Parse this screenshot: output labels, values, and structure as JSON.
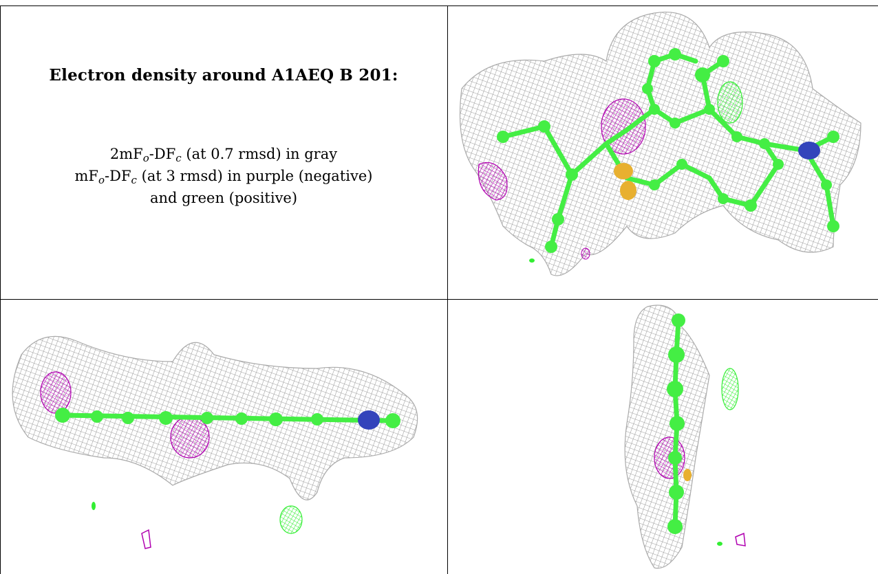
{
  "caption": {
    "title": "Electron density around A1AEQ B 201:",
    "line1": {
      "prefix": "2mF",
      "sub_o": "o",
      "mid": "-DF",
      "sub_c": "c",
      "suffix": " (at 0.7 rmsd) in gray"
    },
    "line2": {
      "prefix": "mF",
      "sub_o": "o",
      "mid": "-DF",
      "sub_c": "c",
      "suffix": " (at 3 rmsd) in purple (negative)"
    },
    "line3": "and green (positive)"
  },
  "colors": {
    "mesh_2fofc": "#9a9a9a",
    "fofc_negative": "#b000b0",
    "fofc_positive": "#33ee33",
    "carbon": "#44ee44",
    "sulfur": "#e8b030",
    "nitrogen": "#3344bb"
  },
  "panels": [
    {
      "view": "top-right",
      "description_icon": "ligand-density-view-face"
    },
    {
      "view": "bottom-left",
      "description_icon": "ligand-density-view-edge"
    },
    {
      "view": "bottom-right",
      "description_icon": "ligand-density-view-end"
    }
  ]
}
